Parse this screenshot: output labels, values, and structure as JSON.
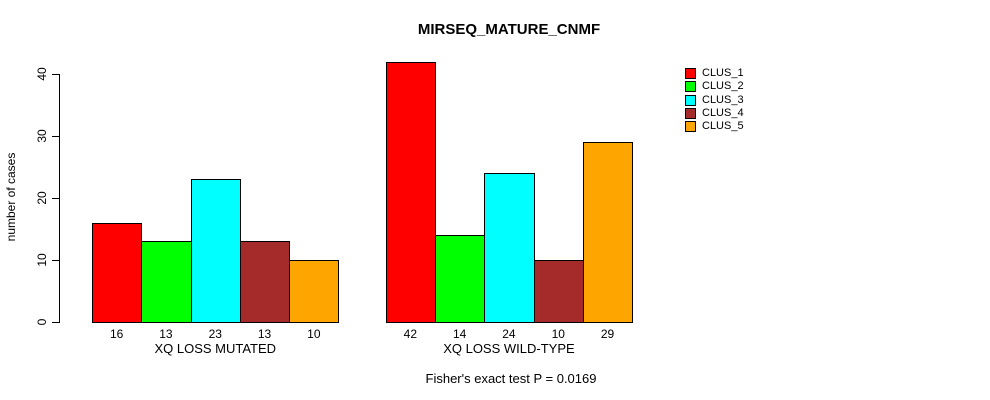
{
  "chart_data": {
    "type": "bar",
    "title": "MIRSEQ_MATURE_CNMF",
    "ylabel": "number of cases",
    "xlabel": "",
    "ylim": [
      0,
      42
    ],
    "yticks": [
      0,
      10,
      20,
      30,
      40
    ],
    "grid": false,
    "legend_position": "right",
    "bar_value_labels": true,
    "categories": [
      "XQ LOSS MUTATED",
      "XQ LOSS WILD-TYPE"
    ],
    "series": [
      {
        "name": "CLUS_1",
        "color": "#FF0000",
        "values": [
          16,
          42
        ]
      },
      {
        "name": "CLUS_2",
        "color": "#00FF00",
        "values": [
          13,
          14
        ]
      },
      {
        "name": "CLUS_3",
        "color": "#00FFFF",
        "values": [
          23,
          24
        ]
      },
      {
        "name": "CLUS_4",
        "color": "#A52A2A",
        "values": [
          13,
          10
        ]
      },
      {
        "name": "CLUS_5",
        "color": "#FFA500",
        "values": [
          10,
          29
        ]
      }
    ],
    "annotation": "Fisher's exact test P = 0.0169"
  }
}
